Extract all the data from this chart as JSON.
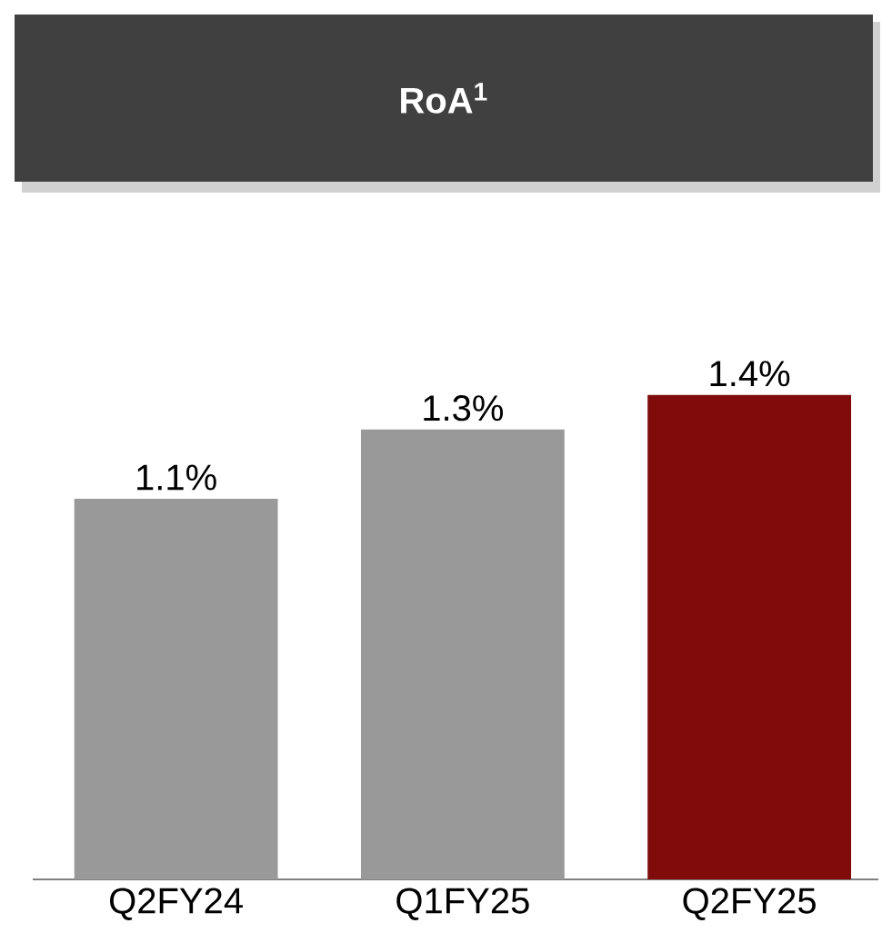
{
  "chart_data": {
    "type": "bar",
    "title": "RoA$^{1}$",
    "categories": [
      "Q2FY24",
      "Q1FY25",
      "Q2FY25"
    ],
    "values": [
      1.1,
      1.3,
      1.4
    ],
    "colors": [
      "#999999",
      "#999999",
      "#7f0b0b"
    ],
    "value_labels": [
      "1.1%",
      "1.3%",
      "1.4%"
    ]
  }
}
